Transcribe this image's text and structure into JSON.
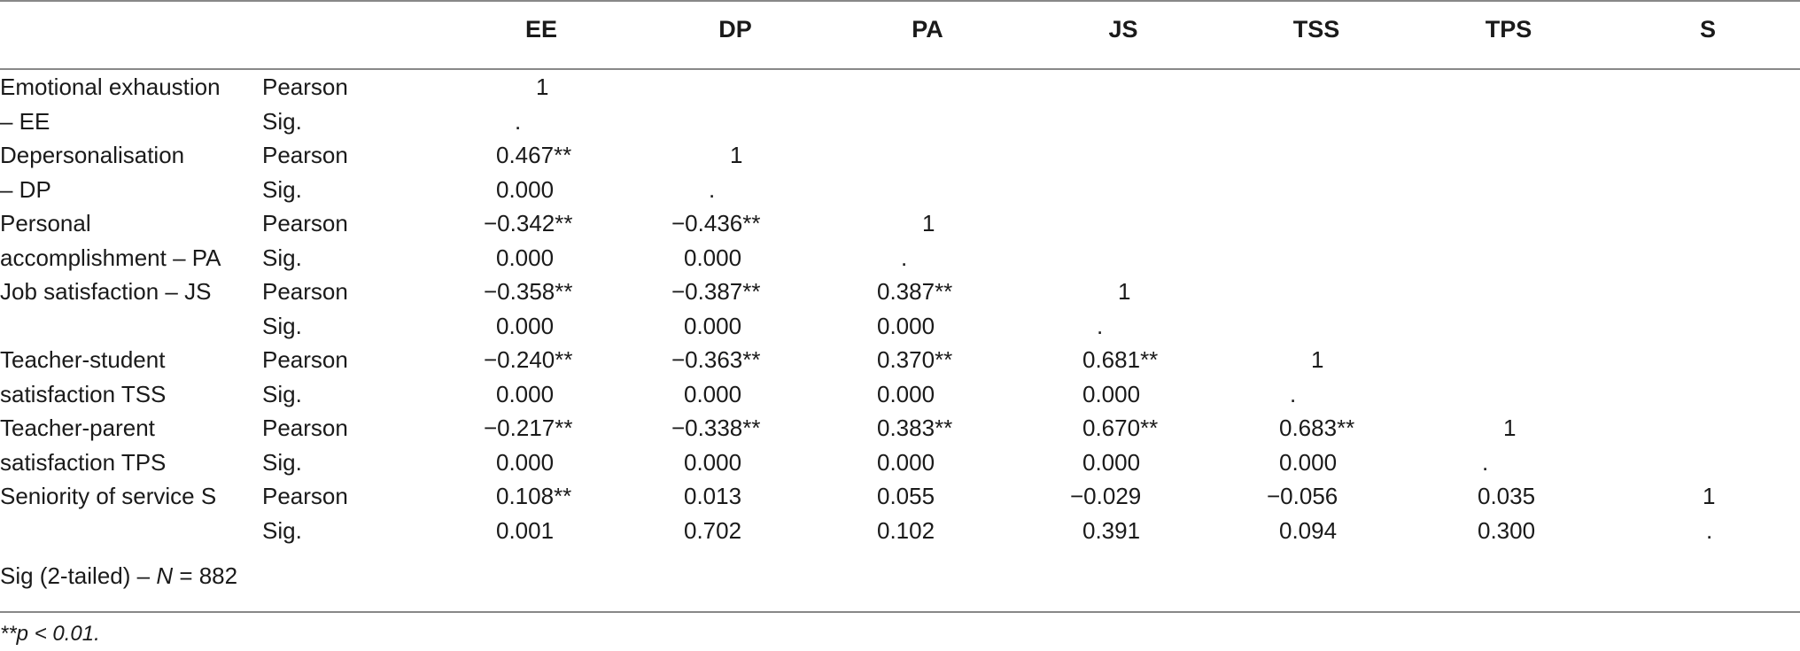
{
  "columns": [
    "EE",
    "DP",
    "PA",
    "JS",
    "TSS",
    "TPS",
    "S"
  ],
  "rows": [
    {
      "label1": "Emotional exhaustion",
      "label2": "– EE",
      "pearson": [
        "1",
        "",
        "",
        "",
        "",
        "",
        ""
      ],
      "sig": [
        ".",
        "",
        "",
        "",
        "",
        "",
        ""
      ]
    },
    {
      "label1": "Depersonalisation",
      "label2": "– DP",
      "pearson": [
        "0.467**",
        "1",
        "",
        "",
        "",
        "",
        ""
      ],
      "sig": [
        "0.000",
        ".",
        "",
        "",
        "",
        "",
        ""
      ]
    },
    {
      "label1": "Personal",
      "label2": "accomplishment – PA",
      "pearson": [
        "−0.342**",
        "−0.436**",
        "1",
        "",
        "",
        "",
        ""
      ],
      "sig": [
        "0.000",
        "0.000",
        ".",
        "",
        "",
        "",
        ""
      ]
    },
    {
      "label1": "Job satisfaction – JS",
      "label2": "",
      "pearson": [
        "−0.358**",
        "−0.387**",
        "0.387**",
        "1",
        "",
        "",
        ""
      ],
      "sig": [
        "0.000",
        "0.000",
        "0.000",
        ".",
        "",
        "",
        ""
      ]
    },
    {
      "label1": "Teacher-student",
      "label2": "satisfaction TSS",
      "pearson": [
        "−0.240**",
        "−0.363**",
        "0.370**",
        "0.681**",
        "1",
        "",
        ""
      ],
      "sig": [
        "0.000",
        "0.000",
        "0.000",
        "0.000",
        ".",
        "",
        ""
      ]
    },
    {
      "label1": "Teacher-parent",
      "label2": "satisfaction TPS",
      "pearson": [
        "−0.217**",
        "−0.338**",
        "0.383**",
        "0.670**",
        "0.683**",
        "1",
        ""
      ],
      "sig": [
        "0.000",
        "0.000",
        "0.000",
        "0.000",
        "0.000",
        ".",
        ""
      ]
    },
    {
      "label1": "Seniority of service S",
      "label2": "",
      "pearson": [
        "0.108**",
        "0.013",
        "0.055",
        "−0.029",
        "−0.056",
        "0.035",
        "1"
      ],
      "sig": [
        "0.001",
        "0.702",
        "0.102",
        "0.391",
        "0.094",
        "0.300",
        "."
      ]
    }
  ],
  "stat_labels": {
    "pearson": "Pearson",
    "sig": "Sig."
  },
  "footer_prefix": "Sig (2-tailed) – ",
  "footer_var": "N",
  "footer_value": " = 882",
  "note": "**p < 0.01."
}
